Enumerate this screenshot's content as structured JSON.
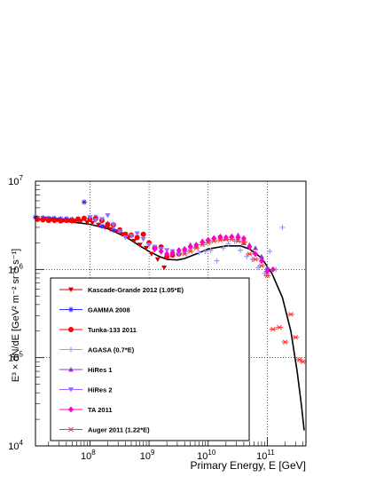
{
  "chart_data": {
    "type": "scatter",
    "x_scale": "log",
    "y_scale": "log",
    "xlabel": "Primary Energy, E [GeV]",
    "ylabel": "E³ × dN/dE [GeV² m⁻² sr⁻¹ s⁻¹]",
    "xlim": [
      12000000,
      450000000000
    ],
    "ylim": [
      10000,
      10000000
    ],
    "x_ticks": [
      {
        "value": 100000000,
        "label": "10",
        "exp": "8"
      },
      {
        "value": 1000000000,
        "label": "10",
        "exp": "9"
      },
      {
        "value": 10000000000,
        "label": "10",
        "exp": "10"
      },
      {
        "value": 100000000000,
        "label": "10",
        "exp": "11"
      }
    ],
    "y_ticks": [
      {
        "value": 10000,
        "label": "10",
        "exp": "4"
      },
      {
        "value": 100000,
        "label": "10",
        "exp": "5"
      },
      {
        "value": 1000000,
        "label": "10",
        "exp": "6"
      },
      {
        "value": 10000000,
        "label": "10",
        "exp": "7"
      }
    ],
    "grid": "dotted lines at decades",
    "legend_position": "lower-left",
    "model_curve": {
      "color": "#000000",
      "points": [
        [
          12000000,
          3700000
        ],
        [
          25000000,
          3600000
        ],
        [
          50000000,
          3450000
        ],
        [
          100000000,
          3250000
        ],
        [
          200000000,
          2900000
        ],
        [
          400000000,
          2350000
        ],
        [
          700000000,
          1850000
        ],
        [
          1000000000,
          1600000
        ],
        [
          1500000000,
          1400000
        ],
        [
          2000000000,
          1300000
        ],
        [
          3000000000,
          1280000
        ],
        [
          4000000000,
          1330000
        ],
        [
          6000000000,
          1480000
        ],
        [
          10000000000,
          1700000
        ],
        [
          20000000000,
          1850000
        ],
        [
          35000000000,
          1850000
        ],
        [
          50000000000,
          1700000
        ],
        [
          80000000000,
          1350000
        ],
        [
          120000000000,
          900000
        ],
        [
          180000000000,
          480000
        ],
        [
          250000000000,
          200000
        ],
        [
          320000000000,
          70000
        ],
        [
          380000000000,
          28000
        ],
        [
          420000000000,
          15000
        ]
      ]
    },
    "series": [
      {
        "name": "Kascade-Grande 2012 (1.05*E)",
        "color": "#d40000",
        "marker": "triangle-down",
        "points": [
          [
            17000000,
            3750000
          ],
          [
            22000000,
            3700000
          ],
          [
            28000000,
            3650000
          ],
          [
            35000000,
            3600000
          ],
          [
            45000000,
            3600000
          ],
          [
            56000000,
            3550000
          ],
          [
            70000000,
            3500000
          ],
          [
            90000000,
            3400000
          ],
          [
            110000000,
            3350000
          ],
          [
            140000000,
            3200000
          ],
          [
            180000000,
            3000000
          ],
          [
            220000000,
            2850000
          ],
          [
            280000000,
            2700000
          ],
          [
            350000000,
            2500000
          ],
          [
            450000000,
            2300000
          ],
          [
            560000000,
            2100000
          ],
          [
            700000000,
            1900000
          ],
          [
            900000000,
            1750000
          ],
          [
            1100000000,
            1500000
          ],
          [
            1400000000,
            1300000
          ],
          [
            1800000000,
            1050000
          ]
        ]
      },
      {
        "name": "GAMMA 2008",
        "color": "#3333ff",
        "marker": "star",
        "points": [
          [
            12000000,
            3900000
          ],
          [
            16000000,
            3850000
          ],
          [
            20000000,
            3800000
          ],
          [
            25000000,
            3800000
          ],
          [
            32000000,
            3750000
          ],
          [
            40000000,
            3750000
          ],
          [
            50000000,
            3700000
          ],
          [
            63000000,
            3750000
          ],
          [
            80000000,
            5800000
          ],
          [
            100000000,
            3800000
          ],
          [
            125000000,
            3900000
          ],
          [
            160000000,
            3100000
          ],
          [
            200000000,
            3300000
          ],
          [
            250000000,
            2800000
          ]
        ]
      },
      {
        "name": "Tunka-133 2011",
        "color": "#ff0000",
        "marker": "circle",
        "points": [
          [
            13000000,
            3700000
          ],
          [
            16000000,
            3650000
          ],
          [
            20000000,
            3600000
          ],
          [
            25000000,
            3600000
          ],
          [
            32000000,
            3550000
          ],
          [
            40000000,
            3600000
          ],
          [
            50000000,
            3550000
          ],
          [
            63000000,
            3700000
          ],
          [
            80000000,
            3800000
          ],
          [
            100000000,
            3700000
          ],
          [
            125000000,
            3750000
          ],
          [
            160000000,
            3600000
          ],
          [
            200000000,
            3200000
          ],
          [
            250000000,
            3200000
          ],
          [
            320000000,
            2800000
          ],
          [
            400000000,
            2500000
          ],
          [
            500000000,
            2450000
          ],
          [
            630000000,
            2300000
          ],
          [
            800000000,
            2500000
          ],
          [
            1000000000,
            2000000
          ],
          [
            1250000000,
            1750000
          ],
          [
            1600000000,
            1800000
          ],
          [
            2000000000,
            1400000
          ],
          [
            2500000000,
            1450000
          ],
          [
            3200000000,
            1500000
          ]
        ]
      },
      {
        "name": "AGASA (0.7*E)",
        "color": "#9999ff",
        "marker": "cross",
        "points": [
          [
            7000000000,
            1550000
          ],
          [
            9000000000,
            1600000
          ],
          [
            11000000000,
            1650000
          ],
          [
            14000000000,
            1250000
          ],
          [
            18000000000,
            1750000
          ],
          [
            22000000000,
            1950000
          ],
          [
            28000000000,
            2100000
          ],
          [
            35000000000,
            1650000
          ],
          [
            45000000000,
            1400000
          ],
          [
            56000000000,
            1300000
          ],
          [
            70000000000,
            1050000
          ],
          [
            90000000000,
            900000
          ],
          [
            110000000000,
            1600000
          ],
          [
            140000000000,
            1000000
          ],
          [
            180000000000,
            3000000
          ]
        ]
      },
      {
        "name": "HiRes 1",
        "color": "#9933cc",
        "marker": "triangle-up",
        "points": [
          [
            2500000000,
            1500000
          ],
          [
            3200000000,
            1600000
          ],
          [
            4000000000,
            1700000
          ],
          [
            5000000000,
            1900000
          ],
          [
            6300000000,
            1850000
          ],
          [
            8000000000,
            2100000
          ],
          [
            10000000000,
            2200000
          ],
          [
            12500000000,
            2300000
          ],
          [
            16000000000,
            2350000
          ],
          [
            20000000000,
            2250000
          ],
          [
            25000000000,
            2400000
          ],
          [
            32000000000,
            2450000
          ],
          [
            40000000000,
            2000000
          ],
          [
            50000000000,
            1900000
          ],
          [
            63000000000,
            1750000
          ],
          [
            80000000000,
            1400000
          ],
          [
            100000000000,
            1050000
          ]
        ]
      },
      {
        "name": "HiRes 2",
        "color": "#9966ff",
        "marker": "triangle-down",
        "points": [
          [
            100000000,
            3900000
          ],
          [
            125000000,
            3600000
          ],
          [
            160000000,
            3700000
          ],
          [
            200000000,
            4100000
          ],
          [
            250000000,
            3200000
          ],
          [
            320000000,
            2700000
          ],
          [
            400000000,
            2300000
          ],
          [
            500000000,
            2400000
          ],
          [
            630000000,
            2550000
          ],
          [
            800000000,
            2200000
          ],
          [
            1000000000,
            1900000
          ],
          [
            1250000000,
            1800000
          ],
          [
            1600000000,
            1700000
          ],
          [
            2000000000,
            1650000
          ],
          [
            2500000000,
            1600000
          ],
          [
            3200000000,
            1500000
          ],
          [
            4000000000,
            1550000
          ],
          [
            5000000000,
            1750000
          ]
        ]
      },
      {
        "name": "TA 2011",
        "color": "#ff00cc",
        "marker": "diamond",
        "points": [
          [
            1250000000,
            1700000
          ],
          [
            1600000000,
            1600000
          ],
          [
            2000000000,
            1500000
          ],
          [
            2500000000,
            1550000
          ],
          [
            3200000000,
            1650000
          ],
          [
            4000000000,
            1700000
          ],
          [
            5000000000,
            1800000
          ],
          [
            6300000000,
            1900000
          ],
          [
            8000000000,
            2050000
          ],
          [
            10000000000,
            2150000
          ],
          [
            12500000000,
            2250000
          ],
          [
            16000000000,
            2350000
          ],
          [
            20000000000,
            2300000
          ],
          [
            25000000000,
            2350000
          ],
          [
            32000000000,
            2300000
          ],
          [
            40000000000,
            2250000
          ],
          [
            50000000000,
            1800000
          ],
          [
            63000000000,
            1500000
          ],
          [
            80000000000,
            1250000
          ],
          [
            100000000000,
            950000
          ],
          [
            125000000000,
            1000000
          ]
        ]
      },
      {
        "name": "Auger 2011 (1.22*E)",
        "color": "#ff3333",
        "marker": "asterisk",
        "points": [
          [
            4000000000,
            1500000
          ],
          [
            5000000000,
            1600000
          ],
          [
            6300000000,
            1750000
          ],
          [
            8000000000,
            1900000
          ],
          [
            10000000000,
            2000000
          ],
          [
            12500000000,
            2100000
          ],
          [
            16000000000,
            2150000
          ],
          [
            20000000000,
            2200000
          ],
          [
            25000000000,
            2200000
          ],
          [
            32000000000,
            2100000
          ],
          [
            40000000000,
            2050000
          ],
          [
            50000000000,
            1500000
          ],
          [
            63000000000,
            1300000
          ],
          [
            80000000000,
            1100000
          ],
          [
            100000000000,
            850000
          ],
          [
            125000000000,
            210000
          ],
          [
            160000000000,
            220000
          ],
          [
            200000000000,
            150000
          ],
          [
            250000000000,
            310000
          ],
          [
            300000000000,
            170000
          ],
          [
            350000000000,
            95000
          ],
          [
            400000000000,
            90000
          ]
        ]
      }
    ]
  }
}
